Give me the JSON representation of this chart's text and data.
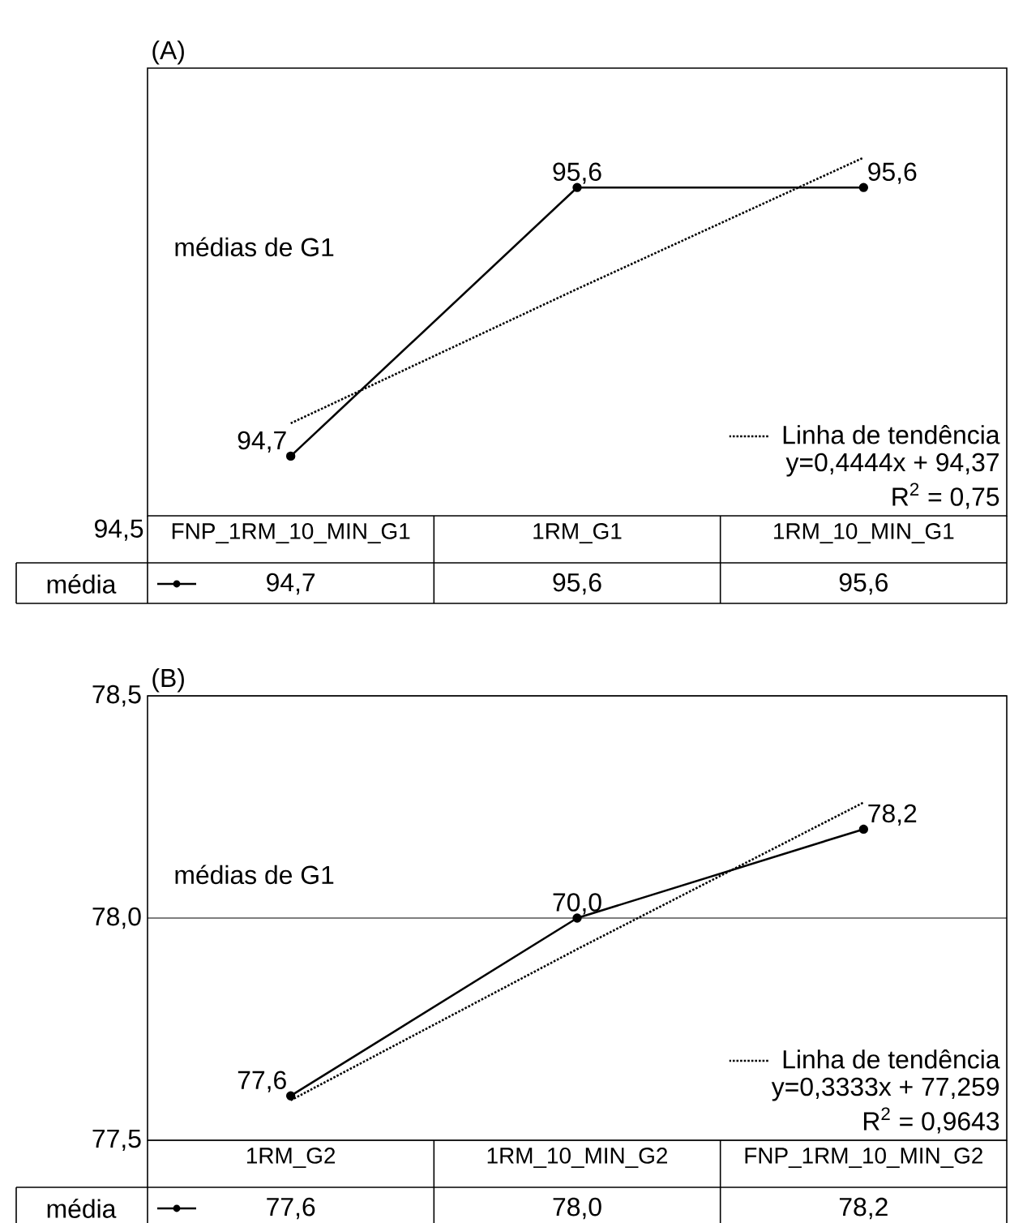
{
  "chart_data": [
    {
      "type": "line",
      "title": "(A)",
      "categories": [
        "FNP_1RM_10_MIN_G1",
        "1RM_G1",
        "1RM_10_MIN_G1"
      ],
      "ylim": [
        94.5,
        96.0
      ],
      "legend": "bottom",
      "series": [
        {
          "name": "média",
          "color": "#000000",
          "marker": "circle",
          "line_style": "solid",
          "values": [
            94.7,
            95.6,
            95.6
          ],
          "value_labels": [
            "94,7",
            "95,6",
            "95,6"
          ]
        },
        {
          "name": "Linha de tendência",
          "color": "#000000",
          "marker": "none",
          "line_style": "dotted",
          "values": [
            94.81,
            95.26,
            95.7
          ]
        }
      ],
      "annotations": [
        "médias de G1",
        "94,5",
        "y=0,4444x + 94,37",
        "R$^{2}$ = 0,75",
        {
          "text": "94,7",
          "x": "FNP_1RM_10_MIN_G1",
          "y": 94.7
        },
        {
          "text": "95,6",
          "x": "1RM_G1",
          "y": 95.6
        },
        {
          "text": "95,6",
          "x": "1RM_10_MIN_G1",
          "y": 95.6
        }
      ]
    },
    {
      "type": "line",
      "title": "(B)",
      "categories": [
        "1RM_G2",
        "1RM_10_MIN_G2",
        "FNP_1RM_10_MIN_G2"
      ],
      "ylim": [
        77.5,
        78.5
      ],
      "yticks": [
        {
          "value": 77.5,
          "label": "77,5"
        },
        {
          "value": 78.0,
          "label": "78,0"
        },
        {
          "value": 78.5,
          "label": "78,5"
        }
      ],
      "grid": "y",
      "legend": "bottom",
      "series": [
        {
          "name": "média",
          "color": "#000000",
          "marker": "circle",
          "line_style": "solid",
          "values": [
            77.6,
            78.0,
            78.2
          ],
          "value_labels": [
            "77,6",
            "78,0",
            "78,2"
          ]
        },
        {
          "name": "Linha de tendência",
          "color": "#000000",
          "marker": "none",
          "line_style": "dotted",
          "values": [
            77.59,
            77.93,
            78.26
          ]
        }
      ],
      "annotations": [
        "médias de G1",
        "y=0,3333x + 77,259",
        "R$^{2}$ = 0,9643",
        {
          "text": "77,6",
          "x": "1RM_G2",
          "y": 77.6
        },
        {
          "text": "70,0",
          "x": "1RM_10_MIN_G2",
          "y": 78.0
        },
        {
          "text": "78,2",
          "x": "FNP_1RM_10_MIN_G2",
          "y": 78.2
        }
      ]
    }
  ]
}
